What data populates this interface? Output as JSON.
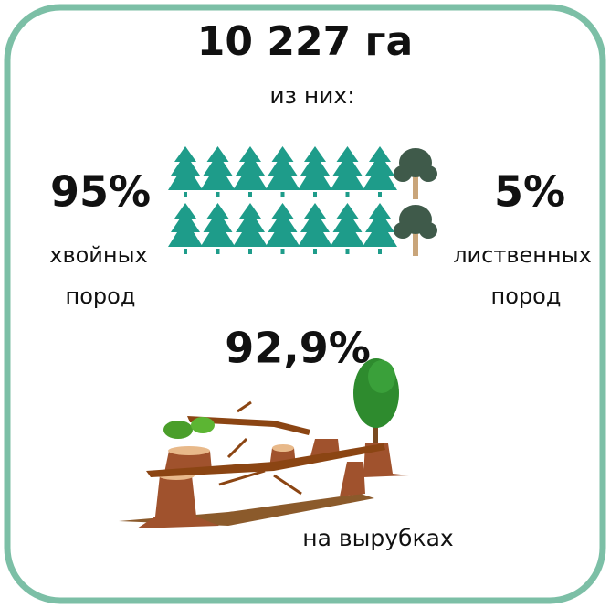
{
  "header": {
    "total": "10 227 га",
    "subtitle": "из них:"
  },
  "conifer": {
    "percent": "95%",
    "label_line1": "хвойных",
    "label_line2": "пород"
  },
  "deciduous": {
    "percent": "5%",
    "label_line1": "лиственных",
    "label_line2": "пород"
  },
  "logging": {
    "percent": "92,9%",
    "label": "на вырубках"
  }
}
